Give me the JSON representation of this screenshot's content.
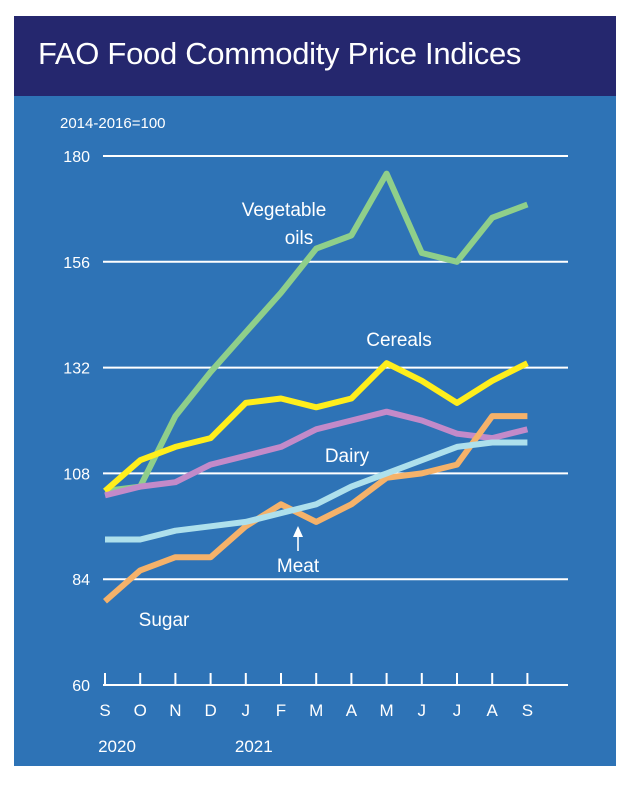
{
  "chart_data": {
    "type": "line",
    "title": "FAO Food Commodity Price Indices",
    "unit_label": "2014-2016=100",
    "x": [
      "S",
      "O",
      "N",
      "D",
      "J",
      "F",
      "M",
      "A",
      "M",
      "J",
      "J",
      "A",
      "S"
    ],
    "year_labels": [
      {
        "label": "2020",
        "at_index": 0
      },
      {
        "label": "2021",
        "at_index": 4
      }
    ],
    "ylim": [
      60,
      180
    ],
    "yticks": [
      60,
      84,
      108,
      132,
      156,
      180
    ],
    "grid": true,
    "series": [
      {
        "name": "Vegetable oils",
        "label_lines": [
          "Vegetable",
          "oils"
        ],
        "color": "#8fcf8a",
        "values": [
          104,
          105,
          121,
          131,
          140,
          149,
          159,
          162,
          176,
          158,
          156,
          166,
          169
        ]
      },
      {
        "name": "Cereals",
        "label_lines": [
          "Cereals"
        ],
        "color": "#ffee1c",
        "values": [
          104,
          111,
          114,
          116,
          124,
          125,
          123,
          125,
          133,
          129,
          124,
          129,
          133
        ]
      },
      {
        "name": "Dairy",
        "label_lines": [
          "Dairy"
        ],
        "color": "#c38ac9",
        "values": [
          103,
          105,
          106,
          110,
          112,
          114,
          118,
          120,
          122,
          120,
          117,
          116,
          118
        ]
      },
      {
        "name": "Meat",
        "label_lines": [
          "Meat"
        ],
        "color": "#aee0ec",
        "values": [
          93,
          93,
          95,
          96,
          97,
          99,
          101,
          105,
          108,
          111,
          114,
          115,
          115
        ]
      },
      {
        "name": "Sugar",
        "label_lines": [
          "Sugar"
        ],
        "color": "#f5b26a",
        "values": [
          79,
          86,
          89,
          89,
          96,
          101,
          97,
          101,
          107,
          108,
          110,
          121,
          121
        ]
      }
    ]
  },
  "colors": {
    "header_bg": "#25276e",
    "plot_bg": "#2e73b6",
    "gridline": "#ffffff",
    "text": "#ffffff"
  }
}
